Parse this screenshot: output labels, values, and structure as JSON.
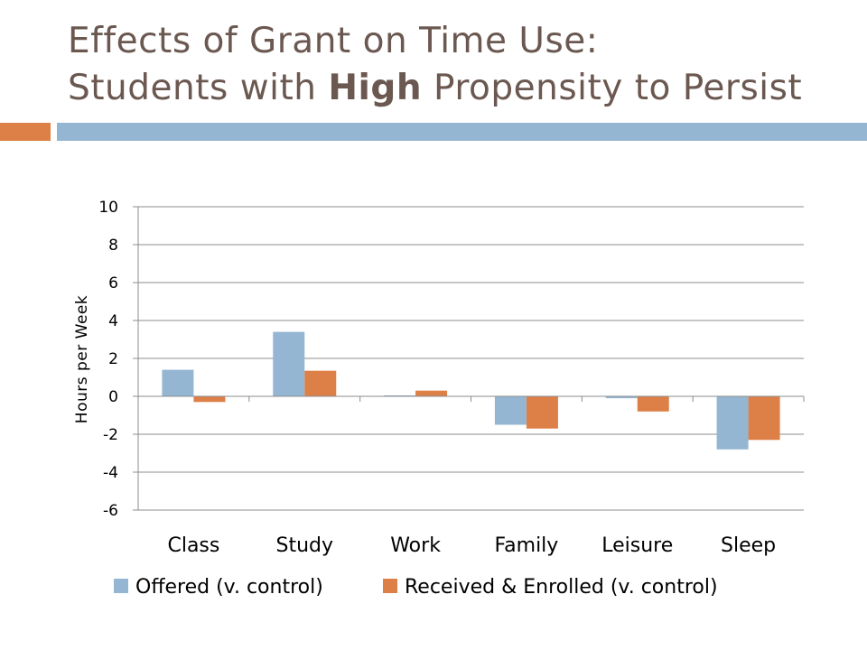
{
  "slide": {
    "title_line1": "Effects of Grant on Time Use:",
    "title_line2_prefix": "Students with ",
    "title_line2_bold": "High",
    "title_line2_suffix": " Propensity to Persist",
    "accent_orange": "#dd8047",
    "accent_blue": "#94b6d2",
    "title_color": "#6b5850"
  },
  "chart_data": {
    "type": "bar",
    "ylabel": "Hours per Week",
    "xlabel": "",
    "ylim": [
      -6,
      10
    ],
    "yticks": [
      10,
      8,
      6,
      4,
      2,
      0,
      -2,
      -4,
      -6
    ],
    "grid": true,
    "legend_position": "bottom",
    "categories": [
      "Class",
      "Study",
      "Work",
      "Family",
      "Leisure",
      "Sleep"
    ],
    "series": [
      {
        "name": "Offered (v. control)",
        "color": "#94b6d2",
        "values": [
          1.4,
          3.4,
          0.05,
          -1.5,
          -0.1,
          -2.8
        ]
      },
      {
        "name": "Received & Enrolled (v. control)",
        "color": "#dd8047",
        "values": [
          -0.3,
          1.35,
          0.3,
          -1.7,
          -0.8,
          -2.3
        ]
      }
    ]
  }
}
